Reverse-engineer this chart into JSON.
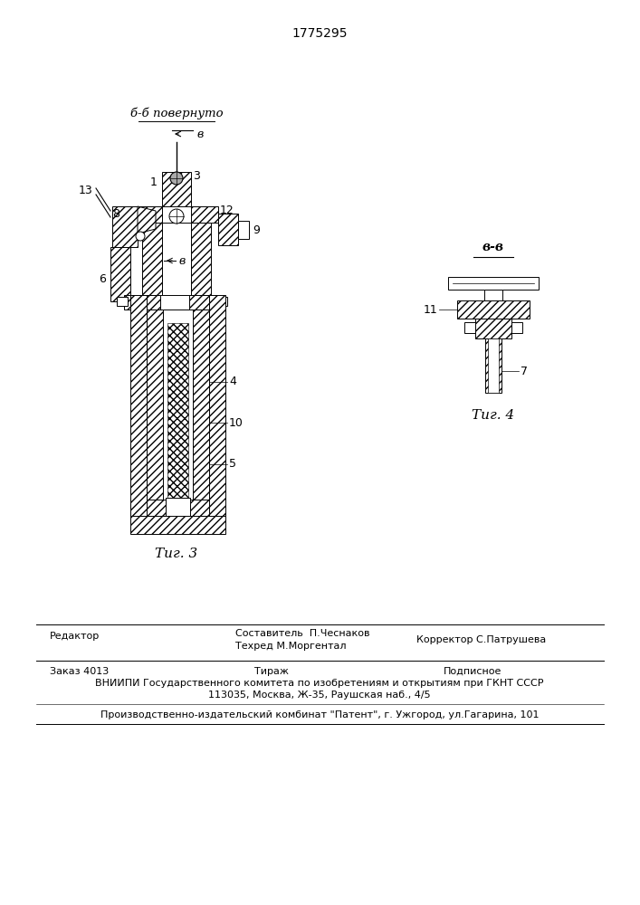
{
  "patent_number": "1775295",
  "fig3_label": "Τиг. 3",
  "fig4_label": "Τиг. 4",
  "section_label_bb": "б-б повернуто",
  "section_label_vv": "в-в",
  "arrow_v": "в",
  "bg_color": "#ffffff",
  "line_color": "#000000",
  "footer_editor": "Редактор",
  "footer_comp1": "Составитель  П.Чеснаков",
  "footer_comp2": "Техред М.Моргентал",
  "footer_corr": "Корректор С.Патрушева",
  "footer_order": "Заказ 4013",
  "footer_tirazh": "Тираж",
  "footer_podp": "Подписное",
  "footer_vniip": "ВНИИПИ Государственного комитета по изобретениям и открытиям при ГКНТ СССР",
  "footer_addr": "113035, Москва, Ж-35, Раушская наб., 4/5",
  "footer_prod": "Производственно-издательский комбинат \"Патент\", г. Ужгород, ул.Гагарина, 101"
}
